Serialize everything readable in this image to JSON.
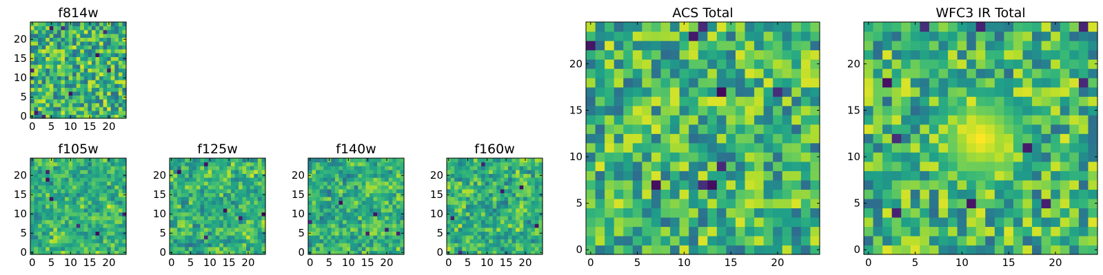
{
  "chart_data": [
    {
      "type": "heatmap",
      "title": "f814w",
      "grid": [
        25,
        25
      ],
      "x_ticks": [
        "0",
        "5",
        "10",
        "15",
        "20"
      ],
      "y_ticks": [
        "0",
        "5",
        "10",
        "15",
        "20"
      ],
      "xlim": [
        -0.5,
        24.5
      ],
      "ylim": [
        -0.5,
        24.5
      ],
      "colormap": "viridis",
      "seed": 814,
      "smoothing": 0,
      "hot_spots": [],
      "dark_cells": 9
    },
    {
      "type": "heatmap",
      "title": "ACS Total",
      "grid": [
        25,
        25
      ],
      "x_ticks": [
        "0",
        "5",
        "10",
        "15",
        "20"
      ],
      "y_ticks": [
        "0",
        "5",
        "10",
        "15",
        "20"
      ],
      "xlim": [
        -0.5,
        24.5
      ],
      "ylim": [
        -0.5,
        24.5
      ],
      "colormap": "viridis",
      "seed": 1001,
      "smoothing": 0,
      "hot_spots": [],
      "dark_cells": 9
    },
    {
      "type": "heatmap",
      "title": "WFC3 IR Total",
      "grid": [
        25,
        25
      ],
      "x_ticks": [
        "0",
        "5",
        "10",
        "15",
        "20"
      ],
      "y_ticks": [
        "0",
        "5",
        "10",
        "15",
        "20"
      ],
      "xlim": [
        -0.5,
        24.5
      ],
      "ylim": [
        -0.5,
        24.5
      ],
      "colormap": "viridis",
      "seed": 3003,
      "smoothing": 0,
      "hot_spots": [
        [
          12,
          12
        ]
      ],
      "dark_cells": 10
    },
    {
      "type": "heatmap",
      "title": "f105w",
      "grid": [
        25,
        25
      ],
      "x_ticks": [
        "0",
        "5",
        "10",
        "15",
        "20"
      ],
      "y_ticks": [
        "0",
        "5",
        "10",
        "15",
        "20"
      ],
      "xlim": [
        -0.5,
        24.5
      ],
      "ylim": [
        -0.5,
        24.5
      ],
      "colormap": "viridis",
      "seed": 105,
      "smoothing": 1,
      "hot_spots": [],
      "dark_cells": 6
    },
    {
      "type": "heatmap",
      "title": "f125w",
      "grid": [
        25,
        25
      ],
      "x_ticks": [
        "0",
        "5",
        "10",
        "15",
        "20"
      ],
      "y_ticks": [
        "0",
        "5",
        "10",
        "15",
        "20"
      ],
      "xlim": [
        -0.5,
        24.5
      ],
      "ylim": [
        -0.5,
        24.5
      ],
      "colormap": "viridis",
      "seed": 125,
      "smoothing": 1,
      "hot_spots": [],
      "dark_cells": 6
    },
    {
      "type": "heatmap",
      "title": "f140w",
      "grid": [
        25,
        25
      ],
      "x_ticks": [
        "0",
        "5",
        "10",
        "15",
        "20"
      ],
      "y_ticks": [
        "0",
        "5",
        "10",
        "15",
        "20"
      ],
      "xlim": [
        -0.5,
        24.5
      ],
      "ylim": [
        -0.5,
        24.5
      ],
      "colormap": "viridis",
      "seed": 140,
      "smoothing": 1,
      "hot_spots": [],
      "dark_cells": 6
    },
    {
      "type": "heatmap",
      "title": "f160w",
      "grid": [
        25,
        25
      ],
      "x_ticks": [
        "0",
        "5",
        "10",
        "15",
        "20"
      ],
      "y_ticks": [
        "0",
        "5",
        "10",
        "15",
        "20"
      ],
      "xlim": [
        -0.5,
        24.5
      ],
      "ylim": [
        -0.5,
        24.5
      ],
      "colormap": "viridis",
      "seed": 160,
      "smoothing": 1,
      "hot_spots": [],
      "dark_cells": 6
    }
  ]
}
